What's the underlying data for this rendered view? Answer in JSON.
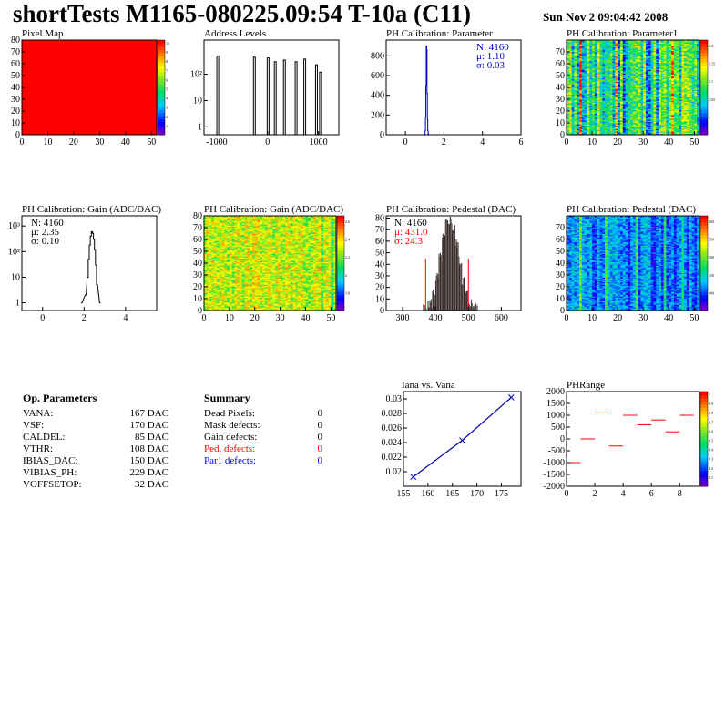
{
  "header": {
    "title": "shortTests M1165-080225.09:54 T-10a (C11)",
    "date": "Sun Nov  2 09:04:42 2008"
  },
  "colors": {
    "frame": "#000000",
    "hist_blue": "#0000cc",
    "red": "#ff0000",
    "blue": "#0000ff"
  },
  "panels": {
    "pixel_map": {
      "title": "Pixel Map"
    },
    "address_levels": {
      "title": "Address Levels"
    },
    "ph_param": {
      "title": "PH Calibration: Parameter",
      "stats": [
        "N: 4160",
        "μ: 1.10",
        "σ: 0.03"
      ]
    },
    "ph_param1": {
      "title": "PH Calibration: Parameter1"
    },
    "gain_hist": {
      "title": "PH Calibration: Gain (ADC/DAC)",
      "stats": [
        "N: 4160",
        "μ: 2.35",
        "σ: 0.10"
      ]
    },
    "gain_map": {
      "title": "PH Calibration: Gain (ADC/DAC)"
    },
    "ped_hist": {
      "title": "PH Calibration: Pedestal (DAC)",
      "stats": [
        "N: 4160",
        "μ: 431.0",
        "σ: 24.3"
      ]
    },
    "ped_map": {
      "title": "PH Calibration: Pedestal (DAC)"
    },
    "iana": {
      "title": "Iana vs. Vana"
    },
    "phrange": {
      "title": "PHRange"
    }
  },
  "op_parameters": {
    "heading": "Op. Parameters",
    "rows": [
      {
        "name": "VANA:",
        "value": "167 DAC"
      },
      {
        "name": "VSF:",
        "value": "170 DAC"
      },
      {
        "name": "CALDEL:",
        "value": "85 DAC"
      },
      {
        "name": "VTHR:",
        "value": "108 DAC"
      },
      {
        "name": "IBIAS_DAC:",
        "value": "150 DAC"
      },
      {
        "name": "VIBIAS_PH:",
        "value": "229 DAC"
      },
      {
        "name": "VOFFSETOP:",
        "value": "32 DAC"
      }
    ]
  },
  "summary": {
    "heading": "Summary",
    "rows": [
      {
        "name": "Dead Pixels:",
        "value": "0",
        "color": "#000000"
      },
      {
        "name": "Mask defects:",
        "value": "0",
        "color": "#000000"
      },
      {
        "name": "Gain defects:",
        "value": "0",
        "color": "#000000"
      },
      {
        "name": "Ped. defects:",
        "value": "0",
        "color": "#ff0000"
      },
      {
        "name": "Par1 defects:",
        "value": "0",
        "color": "#0000ff"
      }
    ]
  },
  "chart_data": [
    {
      "id": "pixel_map",
      "type": "heatmap",
      "title": "Pixel Map",
      "xlim": [
        0,
        52
      ],
      "ylim": [
        0,
        80
      ],
      "xticks": [
        0,
        10,
        20,
        30,
        40,
        50
      ],
      "yticks": [
        0,
        10,
        20,
        30,
        40,
        50,
        60,
        70,
        80
      ],
      "uniform_value": 10,
      "zticks": [
        "1",
        "2",
        "3",
        "4",
        "5",
        "6",
        "7",
        "8",
        "9",
        "10"
      ]
    },
    {
      "id": "address_levels",
      "type": "bar",
      "title": "Address Levels",
      "xlim": [
        -1250,
        1400
      ],
      "xticks": [
        -1000,
        0,
        1000
      ],
      "ylog": true,
      "yticks": [
        "1",
        "10",
        "10²"
      ],
      "ymax": 2000,
      "peaks": [
        {
          "x": -980,
          "y": 500
        },
        {
          "x": -260,
          "y": 450
        },
        {
          "x": 10,
          "y": 420
        },
        {
          "x": 150,
          "y": 300
        },
        {
          "x": 330,
          "y": 350
        },
        {
          "x": 560,
          "y": 300
        },
        {
          "x": 730,
          "y": 380
        },
        {
          "x": 960,
          "y": 230
        },
        {
          "x": 1040,
          "y": 120
        }
      ]
    },
    {
      "id": "ph_param",
      "type": "bar",
      "title": "PH Calibration: Parameter",
      "xlim": [
        -1,
        6
      ],
      "ylim": [
        0,
        960
      ],
      "xticks": [
        0,
        2,
        4,
        6
      ],
      "yticks": [
        0,
        200,
        400,
        600,
        800
      ],
      "bins_x": [
        1.0,
        1.02,
        1.04,
        1.06,
        1.08,
        1.1,
        1.12,
        1.14,
        1.16,
        1.18,
        1.2
      ],
      "bins_y": [
        5,
        40,
        180,
        500,
        900,
        860,
        420,
        150,
        40,
        10,
        2
      ]
    },
    {
      "id": "ph_param1",
      "type": "heatmap",
      "title": "PH Calibration: Parameter1",
      "xlim": [
        0,
        52
      ],
      "ylim": [
        0,
        80
      ],
      "xticks": [
        0,
        10,
        20,
        30,
        40,
        50
      ],
      "yticks": [
        0,
        10,
        20,
        30,
        40,
        50,
        60,
        70
      ],
      "zticks": [
        "1",
        "1.05",
        "1.1",
        "1.15",
        "1.2"
      ]
    },
    {
      "id": "gain_hist",
      "type": "bar",
      "title": "PH Calibration: Gain (ADC/DAC)",
      "xlim": [
        -1,
        5.5
      ],
      "xticks": [
        0,
        2,
        4
      ],
      "ylog": true,
      "yticks": [
        "1",
        "10",
        "10²",
        "10³"
      ],
      "ymax": 2500,
      "bins_x": [
        1.85,
        2.05,
        2.15,
        2.2,
        2.25,
        2.3,
        2.35,
        2.4,
        2.45,
        2.5,
        2.55,
        2.6,
        2.75
      ],
      "bins_y": [
        1,
        2,
        10,
        50,
        180,
        400,
        600,
        520,
        300,
        120,
        30,
        5,
        1
      ]
    },
    {
      "id": "gain_map",
      "type": "heatmap",
      "title": "PH Calibration: Gain (ADC/DAC)",
      "xlim": [
        0,
        52
      ],
      "ylim": [
        0,
        80
      ],
      "xticks": [
        0,
        10,
        20,
        30,
        40,
        50
      ],
      "yticks": [
        0,
        10,
        20,
        30,
        40,
        50,
        60,
        70,
        80
      ],
      "zticks": [
        "1.8",
        "2",
        "2.2",
        "2.4",
        "2.6"
      ]
    },
    {
      "id": "ped_hist",
      "type": "bar",
      "title": "PH Calibration: Pedestal (DAC)",
      "xlim": [
        250,
        660
      ],
      "ylim": [
        0,
        82
      ],
      "xticks": [
        300,
        400,
        500,
        600
      ],
      "yticks": [
        0,
        10,
        20,
        30,
        40,
        50,
        60,
        70,
        80
      ],
      "bins_x": [
        360,
        370,
        380,
        390,
        400,
        410,
        420,
        430,
        440,
        450,
        460,
        470,
        480,
        490,
        500,
        510,
        520
      ],
      "bins_y": [
        1,
        3,
        6,
        15,
        28,
        45,
        62,
        75,
        78,
        70,
        58,
        42,
        26,
        14,
        7,
        3,
        1
      ],
      "cut_lines": [
        370,
        500
      ]
    },
    {
      "id": "ped_map",
      "type": "heatmap",
      "title": "PH Calibration: Pedestal (DAC)",
      "xlim": [
        0,
        52
      ],
      "ylim": [
        0,
        80
      ],
      "xticks": [
        0,
        10,
        20,
        30,
        40,
        50
      ],
      "yticks": [
        0,
        10,
        20,
        30,
        40,
        50,
        60,
        70
      ],
      "zticks": [
        "400",
        "450",
        "500",
        "550",
        "600"
      ]
    },
    {
      "id": "iana",
      "type": "line",
      "title": "Iana vs. Vana",
      "xlim": [
        155,
        179
      ],
      "ylim": [
        0.018,
        0.031
      ],
      "xticks": [
        155,
        160,
        165,
        170,
        175
      ],
      "yticks": [
        0.02,
        0.022,
        0.024,
        0.026,
        0.028,
        0.03
      ],
      "x": [
        157,
        167,
        177
      ],
      "y": [
        0.0193,
        0.0243,
        0.0302
      ]
    },
    {
      "id": "phrange",
      "type": "scatter",
      "title": "PHRange",
      "xlim": [
        0,
        9.4
      ],
      "ylim": [
        -2000,
        2000
      ],
      "xticks": [
        0,
        2,
        4,
        6,
        8
      ],
      "yticks": [
        -2000,
        -1500,
        -1000,
        -500,
        0,
        500,
        1000,
        1500,
        2000
      ],
      "x": [
        0.5,
        1.5,
        2.5,
        3.5,
        4.5,
        5.5,
        6.5,
        7.5,
        8.5
      ],
      "y": [
        -1000,
        0,
        1100,
        -300,
        1000,
        600,
        800,
        300,
        1000
      ],
      "zticks": [
        "0.1",
        "0.2",
        "0.3",
        "0.4",
        "0.5",
        "0.6",
        "0.7",
        "0.8",
        "0.9",
        "1"
      ]
    }
  ]
}
